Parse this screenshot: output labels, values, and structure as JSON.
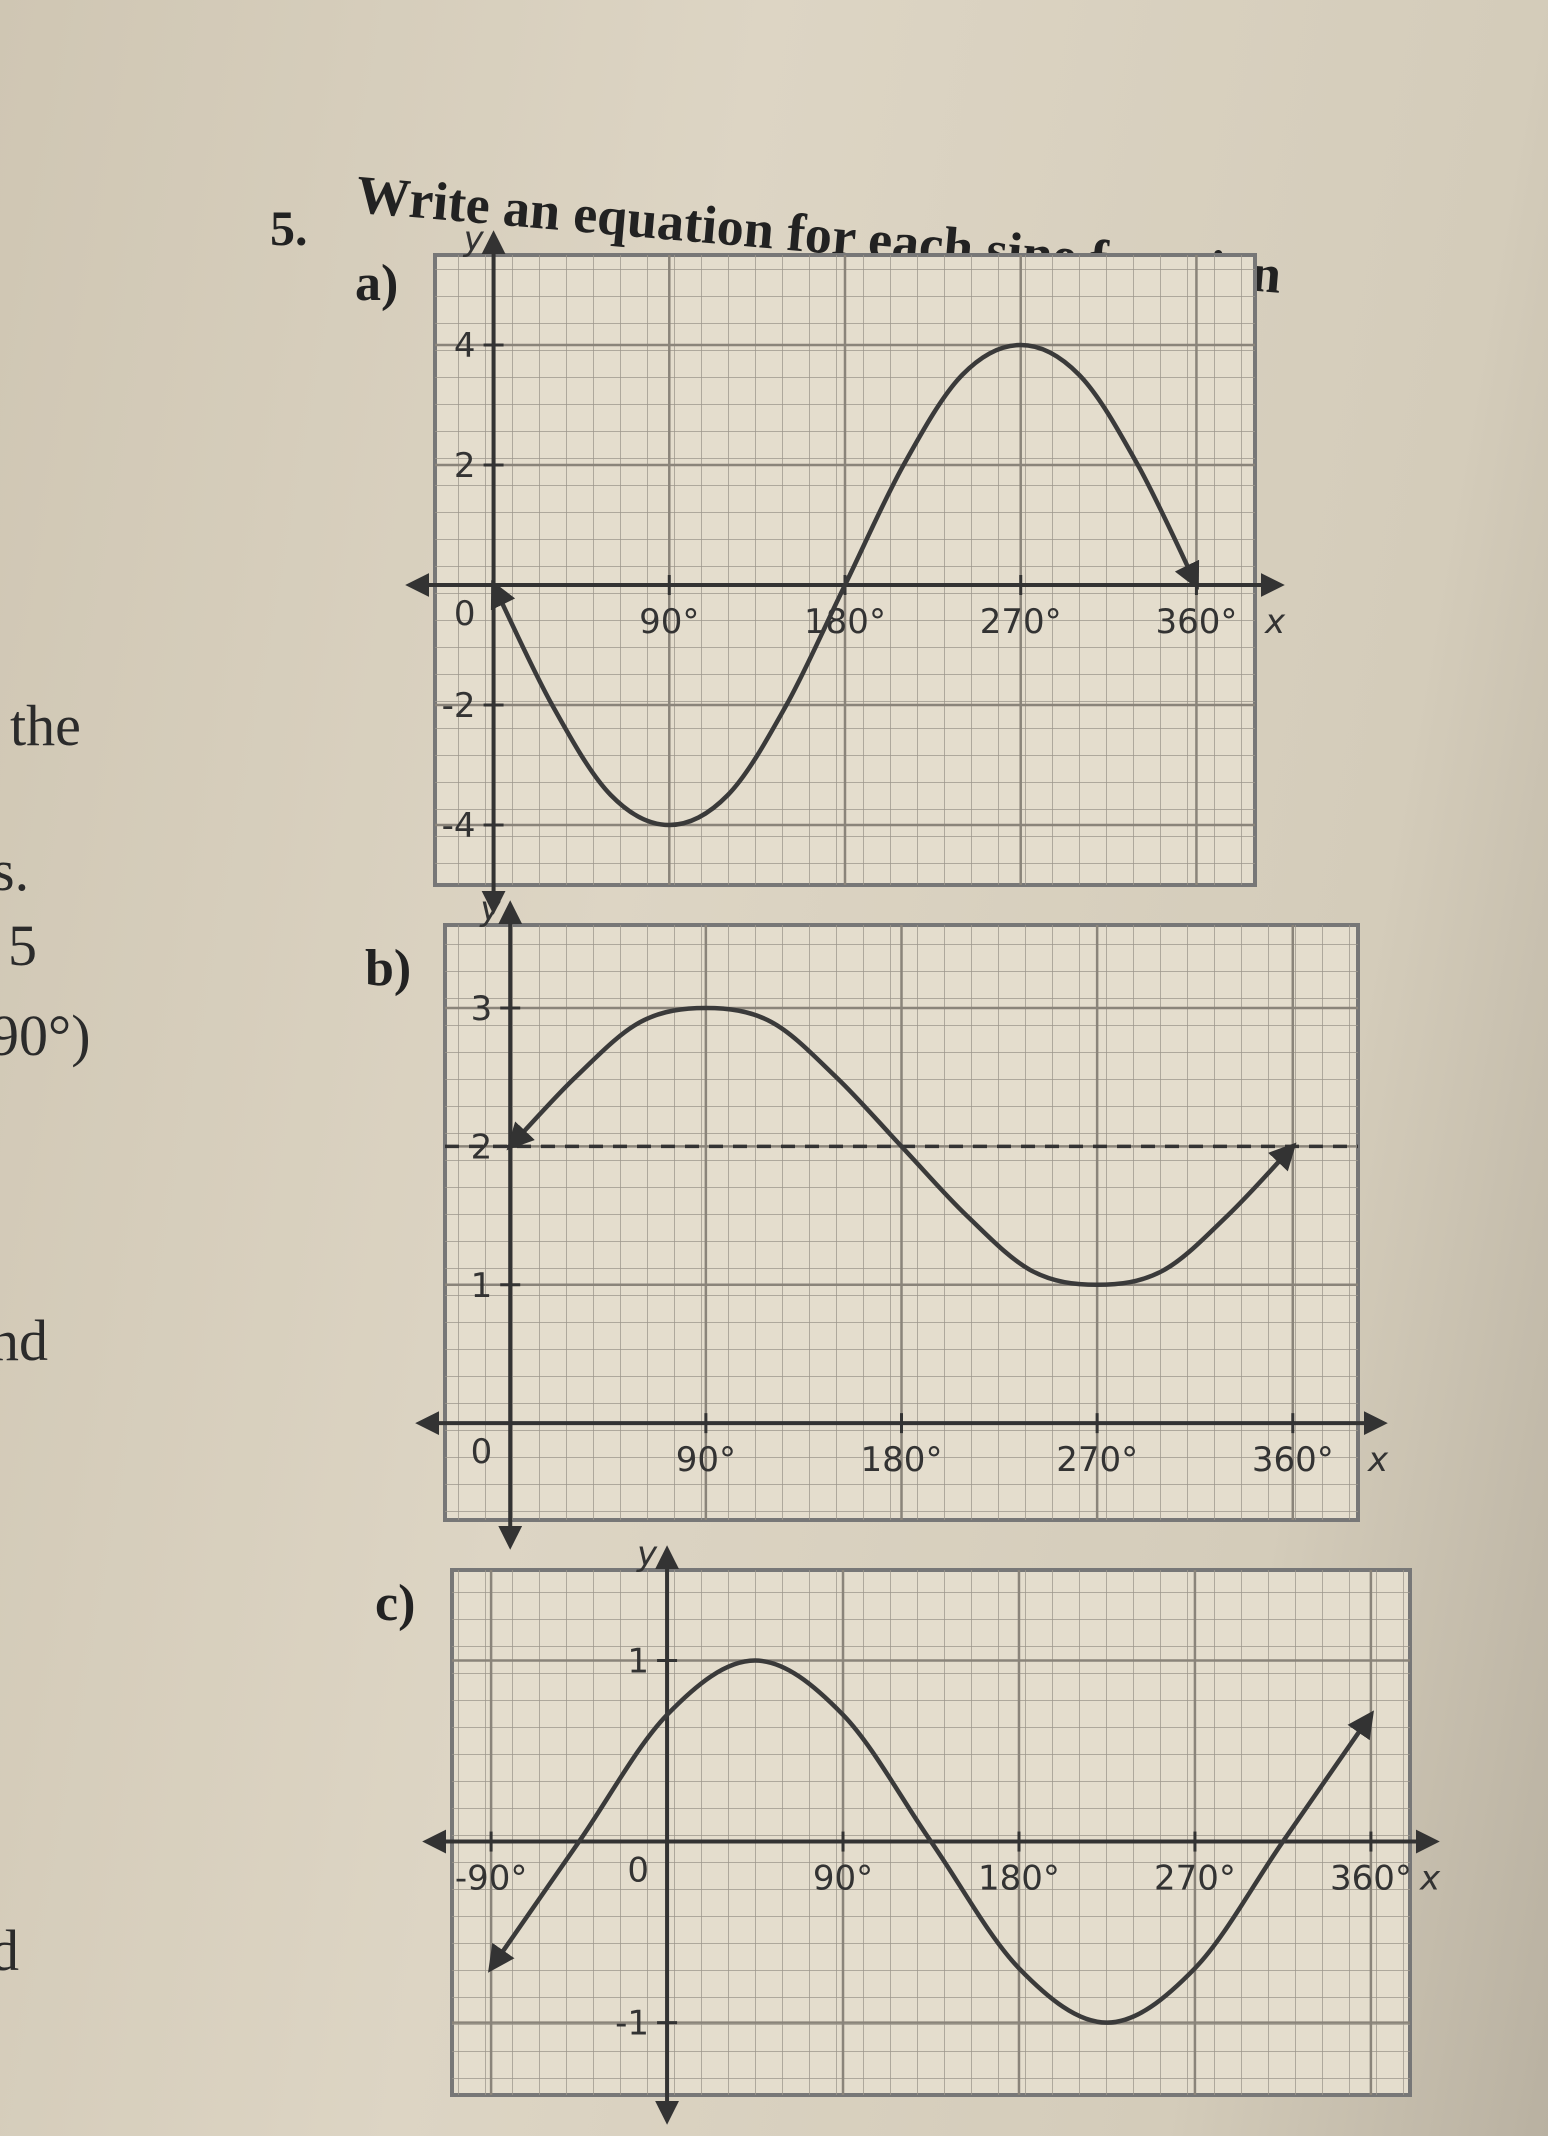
{
  "question": {
    "number": "5.",
    "text": "Write an equation for each sine function"
  },
  "margin_text": [
    "the",
    "s.",
    "5",
    "90°)",
    "nd",
    "d"
  ],
  "chart_data": [
    {
      "type": "line",
      "label": "a)",
      "x_label": "x",
      "y_label": "y",
      "x": [
        0,
        30,
        60,
        90,
        120,
        150,
        180,
        210,
        240,
        270,
        300,
        330,
        360
      ],
      "series": [
        {
          "color": "#3a3a3a",
          "values": [
            0,
            -2,
            -3.5,
            -4,
            -3.5,
            -2,
            0,
            2,
            3.5,
            4,
            3.5,
            2,
            0
          ]
        }
      ],
      "xlim": [
        -30,
        390
      ],
      "ylim": [
        -5,
        5.5
      ],
      "xticks": [
        {
          "value": 90,
          "label": "90°"
        },
        {
          "value": 180,
          "label": "180°"
        },
        {
          "value": 270,
          "label": "270°"
        },
        {
          "value": 360,
          "label": "360°"
        }
      ],
      "yticks": [
        -4,
        -2,
        0,
        2,
        4
      ],
      "grid": true
    },
    {
      "type": "line",
      "label": "b)",
      "x_label": "x",
      "y_label": "y",
      "x": [
        0,
        30,
        60,
        90,
        120,
        150,
        180,
        210,
        240,
        270,
        300,
        330,
        360
      ],
      "series": [
        {
          "color": "#3a3a3a",
          "values": [
            2,
            2.5,
            2.9,
            3,
            2.9,
            2.5,
            2,
            1.5,
            1.1,
            1,
            1.1,
            1.5,
            2
          ]
        }
      ],
      "midline": 2,
      "xlim": [
        -30,
        390
      ],
      "ylim": [
        -0.7,
        3.6
      ],
      "xticks": [
        {
          "value": 90,
          "label": "90°"
        },
        {
          "value": 180,
          "label": "180°"
        },
        {
          "value": 270,
          "label": "270°"
        },
        {
          "value": 360,
          "label": "360°"
        }
      ],
      "yticks": [
        0,
        1,
        2,
        3
      ],
      "grid": true
    },
    {
      "type": "line",
      "label": "c)",
      "x_label": "x",
      "y_label": "y",
      "x": [
        -90,
        -45,
        0,
        45,
        90,
        135,
        180,
        225,
        270,
        315,
        360
      ],
      "series": [
        {
          "color": "#3a3a3a",
          "values": [
            -0.7,
            0,
            0.7,
            1,
            0.7,
            0,
            -0.7,
            -1,
            -0.7,
            0,
            0.7
          ]
        }
      ],
      "xlim": [
        -110,
        380
      ],
      "ylim": [
        -1.4,
        1.5
      ],
      "xticks": [
        {
          "value": -90,
          "label": "-90°"
        },
        {
          "value": 90,
          "label": "90°"
        },
        {
          "value": 180,
          "label": "180°"
        },
        {
          "value": 270,
          "label": "270°"
        },
        {
          "value": 360,
          "label": "360°"
        }
      ],
      "yticks": [
        -1,
        0,
        1
      ],
      "grid": true
    }
  ]
}
